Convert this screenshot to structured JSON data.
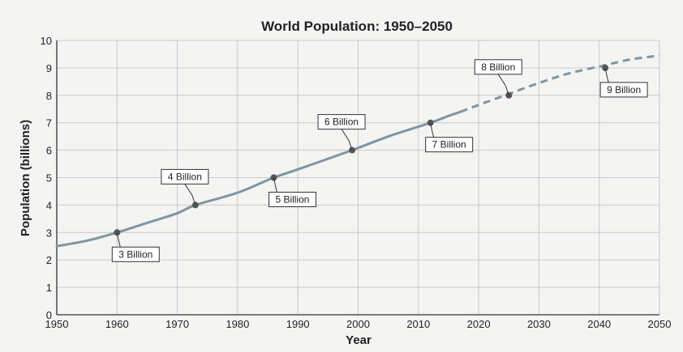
{
  "chart_data": {
    "type": "line",
    "title": "World Population: 1950–2050",
    "xlabel": "Year",
    "ylabel": "Population (billions)",
    "xlim": [
      1950,
      2050
    ],
    "ylim": [
      0,
      10
    ],
    "x_ticks": [
      1950,
      1960,
      1970,
      1980,
      1990,
      2000,
      2010,
      2020,
      2030,
      2040,
      2050
    ],
    "y_ticks": [
      0,
      1,
      2,
      3,
      4,
      5,
      6,
      7,
      8,
      9,
      10
    ],
    "grid": true,
    "line_color": "#7d96a3",
    "marker_color": "#555555",
    "series": [
      {
        "style": "solid",
        "x": [
          1950,
          1955,
          1960,
          1965,
          1970,
          1973,
          1980,
          1986,
          1990,
          1999,
          2005,
          2012,
          2015,
          2017
        ],
        "y": [
          2.5,
          2.7,
          3.0,
          3.35,
          3.7,
          4.0,
          4.45,
          5.0,
          5.3,
          6.0,
          6.5,
          7.0,
          7.25,
          7.4
        ]
      },
      {
        "style": "dashed",
        "x": [
          2017,
          2020,
          2025,
          2030,
          2035,
          2041,
          2045,
          2050
        ],
        "y": [
          7.4,
          7.65,
          8.05,
          8.45,
          8.8,
          9.1,
          9.3,
          9.45
        ]
      }
    ],
    "milestones": [
      {
        "x": 1960,
        "y": 3,
        "label": "3 Billion",
        "pos": "below"
      },
      {
        "x": 1973,
        "y": 4,
        "label": "4 Billion",
        "pos": "above"
      },
      {
        "x": 1986,
        "y": 5,
        "label": "5 Billion",
        "pos": "below"
      },
      {
        "x": 1999,
        "y": 6,
        "label": "6 Billion",
        "pos": "above"
      },
      {
        "x": 2012,
        "y": 7,
        "label": "7 Billion",
        "pos": "below"
      },
      {
        "x": 2025,
        "y": 8,
        "label": "8 Billion",
        "pos": "above"
      },
      {
        "x": 2041,
        "y": 9,
        "label": "9 Billion",
        "pos": "below"
      }
    ]
  }
}
